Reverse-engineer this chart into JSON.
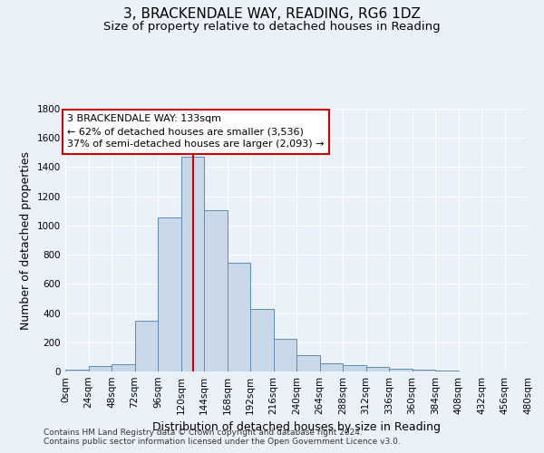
{
  "title_line1": "3, BRACKENDALE WAY, READING, RG6 1DZ",
  "title_line2": "Size of property relative to detached houses in Reading",
  "xlabel": "Distribution of detached houses by size in Reading",
  "ylabel": "Number of detached properties",
  "bar_color": "#c8d8e8",
  "bar_edge_color": "#5b8db8",
  "bin_edges": [
    0,
    24,
    48,
    72,
    96,
    120,
    144,
    168,
    192,
    216,
    240,
    264,
    288,
    312,
    336,
    360,
    384,
    408,
    432,
    456,
    480
  ],
  "bar_heights": [
    10,
    35,
    50,
    350,
    1055,
    1470,
    1105,
    745,
    430,
    225,
    110,
    55,
    45,
    30,
    20,
    10,
    5,
    3,
    2,
    1
  ],
  "tick_labels": [
    "0sqm",
    "24sqm",
    "48sqm",
    "72sqm",
    "96sqm",
    "120sqm",
    "144sqm",
    "168sqm",
    "192sqm",
    "216sqm",
    "240sqm",
    "264sqm",
    "288sqm",
    "312sqm",
    "336sqm",
    "360sqm",
    "384sqm",
    "408sqm",
    "432sqm",
    "456sqm",
    "480sqm"
  ],
  "property_size": 133,
  "vline_color": "#cc0000",
  "annotation_line1": "3 BRACKENDALE WAY: 133sqm",
  "annotation_line2": "← 62% of detached houses are smaller (3,536)",
  "annotation_line3": "37% of semi-detached houses are larger (2,093) →",
  "annotation_box_color": "#ffffff",
  "annotation_box_edge": "#cc0000",
  "ylim": [
    0,
    1800
  ],
  "yticks": [
    0,
    200,
    400,
    600,
    800,
    1000,
    1200,
    1400,
    1600,
    1800
  ],
  "background_color": "#eaf1f8",
  "grid_color": "#ffffff",
  "footer_line1": "Contains HM Land Registry data © Crown copyright and database right 2024.",
  "footer_line2": "Contains public sector information licensed under the Open Government Licence v3.0.",
  "title_fontsize": 11,
  "subtitle_fontsize": 9.5,
  "axis_label_fontsize": 9,
  "tick_fontsize": 7.5,
  "annotation_fontsize": 8,
  "footer_fontsize": 6.5
}
